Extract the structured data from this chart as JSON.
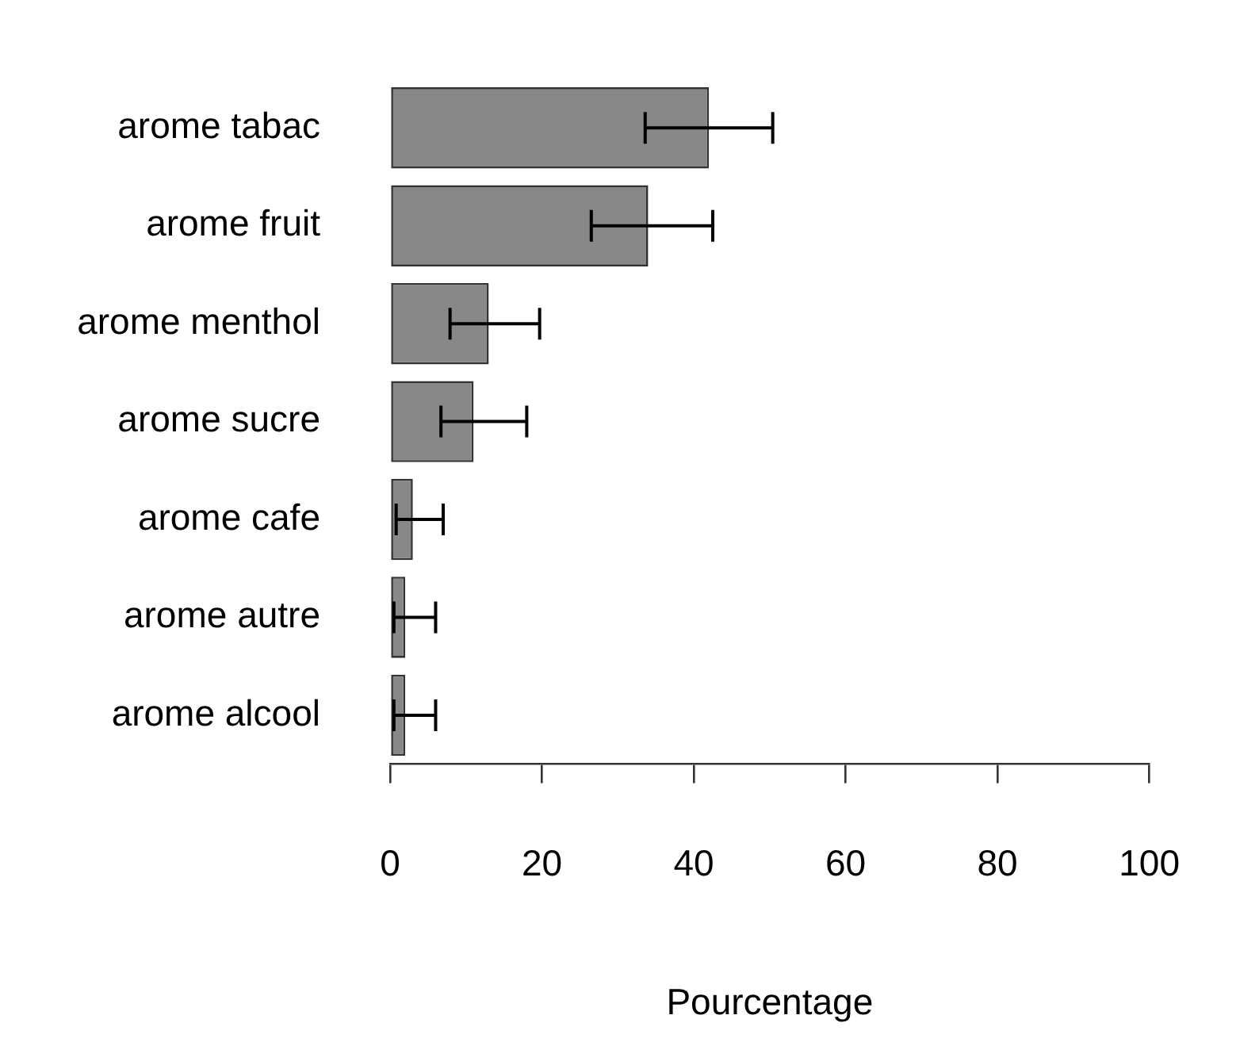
{
  "chart_data": {
    "type": "bar",
    "orientation": "horizontal",
    "xlabel": "Pourcentage",
    "categories": [
      "arome tabac",
      "arome fruit",
      "arome menthol",
      "arome sucre",
      "arome cafe",
      "arome autre",
      "arome alcool"
    ],
    "values": [
      42,
      34,
      13,
      11,
      3,
      2,
      2
    ],
    "errors": [
      [
        33.6,
        50.4
      ],
      [
        26.5,
        42.5
      ],
      [
        7.9,
        19.7
      ],
      [
        6.7,
        18
      ],
      [
        0.8,
        7
      ],
      [
        0.5,
        6
      ],
      [
        0.5,
        6
      ]
    ],
    "color": "#888888",
    "xlim": [
      0,
      100
    ],
    "xticks": [
      0,
      20,
      40,
      60,
      80,
      100
    ],
    "grid": false,
    "legend": false
  }
}
